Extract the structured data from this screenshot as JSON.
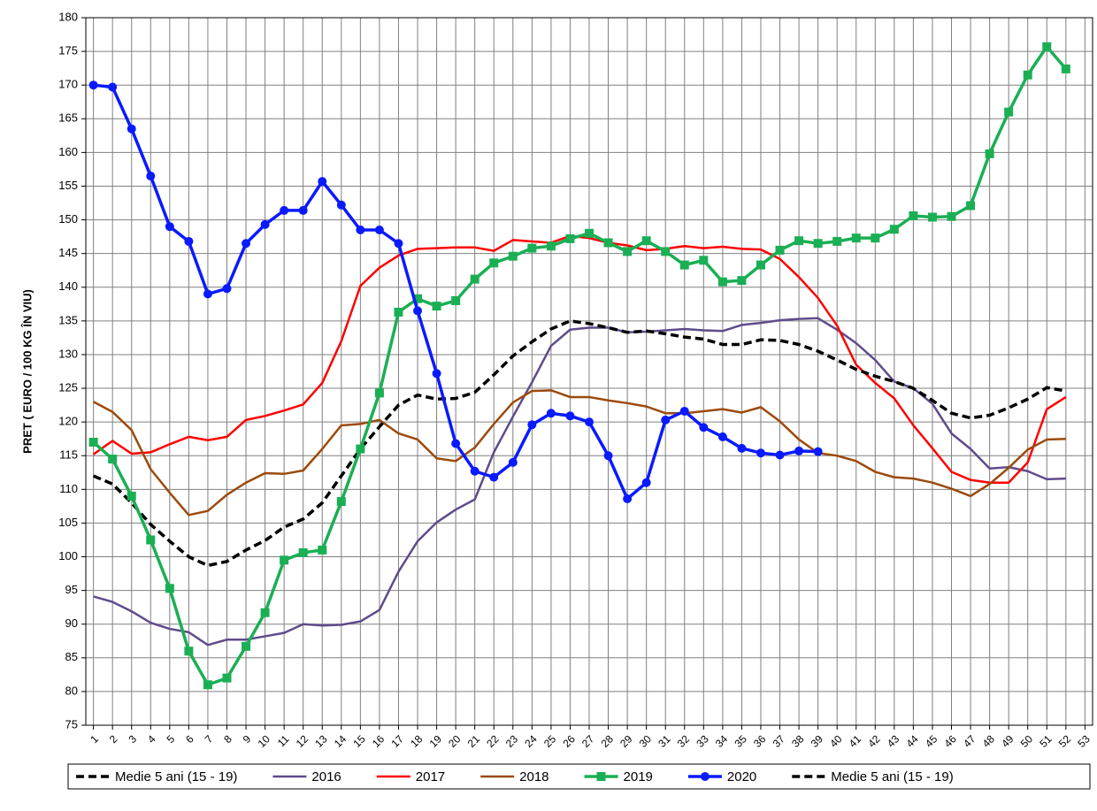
{
  "chart_data": {
    "type": "line",
    "y_label": "PRET ( EURO / 100 KG ÎN VIU)",
    "x": [
      1,
      2,
      3,
      4,
      5,
      6,
      7,
      8,
      9,
      10,
      11,
      12,
      13,
      14,
      15,
      16,
      17,
      18,
      19,
      20,
      21,
      22,
      23,
      24,
      25,
      26,
      27,
      28,
      29,
      30,
      31,
      32,
      33,
      34,
      35,
      36,
      37,
      38,
      39,
      40,
      41,
      42,
      43,
      44,
      45,
      46,
      47,
      48,
      49,
      50,
      51,
      52
    ],
    "xlim": [
      0.6,
      53.4
    ],
    "xticks": [
      1,
      2,
      3,
      4,
      5,
      6,
      7,
      8,
      9,
      10,
      11,
      12,
      13,
      14,
      15,
      16,
      17,
      18,
      19,
      20,
      21,
      22,
      23,
      24,
      25,
      26,
      27,
      28,
      29,
      30,
      31,
      32,
      33,
      34,
      35,
      36,
      37,
      38,
      39,
      40,
      41,
      42,
      43,
      44,
      45,
      46,
      47,
      48,
      49,
      50,
      51,
      52,
      53
    ],
    "ylim": [
      75,
      180
    ],
    "yticks": [
      75,
      80,
      85,
      90,
      95,
      100,
      105,
      110,
      115,
      120,
      125,
      130,
      135,
      140,
      145,
      150,
      155,
      160,
      165,
      170,
      175,
      180
    ],
    "grid": true,
    "legend_position": "bottom",
    "legend": [
      "Medie 5 ani (15 - 19)",
      "2016",
      "2017",
      "2018",
      "2019",
      "2020",
      "Medie 5 ani (15 - 19)"
    ],
    "series": [
      {
        "name": "2016",
        "color": "#5f4b8b",
        "width": 2.5,
        "values": [
          94.1,
          93.3,
          91.9,
          90.2,
          89.3,
          88.8,
          86.9,
          87.7,
          87.7,
          88.2,
          88.7,
          90,
          89.8,
          89.9,
          90.4,
          92.1,
          97.8,
          102.3,
          105.1,
          107,
          108.5,
          115.5,
          120.8,
          125.9,
          131.3,
          133.7,
          134,
          134,
          133.3,
          133.4,
          133.6,
          133.8,
          133.6,
          133.5,
          134.4,
          134.7,
          135.1,
          135.3,
          135.4,
          133.7,
          131.7,
          129.2,
          126,
          125,
          122.7,
          118.3,
          116,
          113.1,
          113.3,
          112.7,
          111.5,
          111.6
        ]
      },
      {
        "name": "2017",
        "color": "#ff0000",
        "width": 2.5,
        "values": [
          115.2,
          117.2,
          115.3,
          115.5,
          116.7,
          117.8,
          117.3,
          117.8,
          120.3,
          120.9,
          121.7,
          122.6,
          125.8,
          132,
          140.2,
          142.9,
          144.7,
          145.7,
          145.8,
          145.9,
          145.9,
          145.4,
          147,
          146.8,
          146.6,
          147.6,
          147.3,
          146.6,
          146.2,
          145.5,
          145.7,
          146.1,
          145.8,
          146,
          145.7,
          145.6,
          144.2,
          141.5,
          138.4,
          134.3,
          128.5,
          125.8,
          123.5,
          119.5,
          116.1,
          112.6,
          111.4,
          111,
          111,
          114,
          121.9,
          123.7
        ]
      },
      {
        "name": "2018",
        "color": "#9c4a0c",
        "width": 2.5,
        "values": [
          123,
          121.5,
          118.8,
          113,
          109.5,
          106.2,
          106.8,
          109.2,
          111,
          112.4,
          112.3,
          112.8,
          116,
          119.5,
          119.7,
          120.3,
          118.3,
          117.4,
          114.6,
          114.2,
          116.2,
          119.7,
          122.9,
          124.6,
          124.7,
          123.7,
          123.7,
          123.2,
          122.8,
          122.3,
          121.3,
          121.3,
          121.6,
          121.9,
          121.4,
          122.2,
          120.1,
          117.4,
          115.4,
          115,
          114.2,
          112.6,
          111.8,
          111.6,
          111,
          110.1,
          109,
          110.8,
          113.2,
          115.9,
          117.4,
          117.5
        ]
      },
      {
        "name": "Medie 5 ani (15 - 19)",
        "color": "#000000",
        "width": 3.5,
        "dash": true,
        "values": [
          112,
          110.8,
          108,
          104.8,
          102.3,
          100,
          98.7,
          99.3,
          101,
          102.4,
          104.4,
          105.6,
          108,
          112,
          116,
          119.3,
          122.5,
          124,
          123.4,
          123.5,
          124.4,
          127,
          129.8,
          131.9,
          133.8,
          135,
          134.6,
          134,
          133.3,
          133.5,
          133.1,
          132.6,
          132.3,
          131.5,
          131.5,
          132.2,
          132.1,
          131.5,
          130.5,
          129.2,
          127.8,
          126.8,
          126,
          125,
          123.2,
          121.3,
          120.6,
          121,
          122.1,
          123.4,
          125.1,
          124.6
        ]
      },
      {
        "name": "2019",
        "color": "#1aaf54",
        "width": 3.5,
        "marker": "square",
        "values": [
          117,
          114.5,
          109,
          102.5,
          95.3,
          86,
          81,
          82,
          86.7,
          91.7,
          99.5,
          100.6,
          101,
          108.2,
          116,
          124.3,
          136.3,
          138.3,
          137.2,
          138,
          141.2,
          143.6,
          144.6,
          145.8,
          146.1,
          147.2,
          148,
          146.6,
          145.3,
          146.9,
          145.3,
          143.3,
          144,
          140.8,
          141,
          143.3,
          145.5,
          146.9,
          146.5,
          146.8,
          147.3,
          147.3,
          148.6,
          150.6,
          150.4,
          150.5,
          152.1,
          159.8,
          166,
          171.5,
          175.7,
          172.4
        ]
      },
      {
        "name": "2020",
        "color": "#0a1aff",
        "width": 3.5,
        "marker": "circle",
        "values": [
          170,
          169.7,
          163.5,
          156.5,
          149,
          146.8,
          139,
          139.8,
          146.5,
          149.3,
          151.4,
          151.4,
          155.7,
          152.2,
          148.5,
          148.5,
          146.5,
          136.5,
          127.2,
          116.8,
          112.7,
          111.8,
          114,
          119.6,
          121.3,
          120.9,
          120,
          115,
          108.6,
          111,
          120.3,
          121.6,
          119.2,
          117.8,
          116.1,
          115.4,
          115.1,
          115.7,
          115.6,
          null,
          null,
          null,
          null,
          null,
          null,
          null,
          null,
          null,
          null,
          null,
          null,
          null
        ]
      }
    ]
  }
}
